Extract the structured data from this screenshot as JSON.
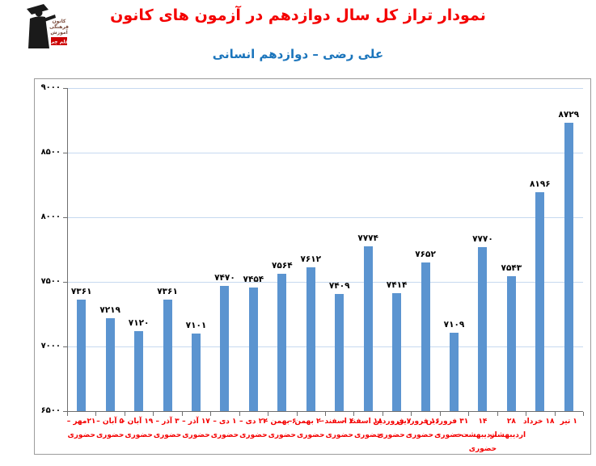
{
  "header": {
    "title": "نمودار تراز کل سال دوازدهم در آزمون های کانون",
    "subtitle": "علی رضی – دوازدهم انسانی",
    "logo": {
      "line1": "کانون",
      "line2": "فرهنگی",
      "line3": "آموزش",
      "badge": "قلم چی"
    }
  },
  "colors": {
    "title": "#f40000",
    "subtitle": "#1b75bc",
    "bar": "#5b94d0",
    "gridline": "#c6d9f0",
    "axis": "#6e6e6e",
    "value_label": "#000000",
    "x_label": "#f40000",
    "box_border": "#9c9c9c",
    "logo_badge": "#cc0000"
  },
  "chart_data": {
    "type": "bar",
    "title": "نمودار تراز کل سال دوازدهم در آزمون های کانون",
    "subtitle": "علی رضی – دوازدهم انسانی",
    "xlabel": "",
    "ylabel": "",
    "ylim": [
      6500,
      9000
    ],
    "grid": true,
    "legend": false,
    "yticks": [
      {
        "value": 6500,
        "label": "۶۵۰۰"
      },
      {
        "value": 7000,
        "label": "۷۰۰۰"
      },
      {
        "value": 7500,
        "label": "۷۵۰۰"
      },
      {
        "value": 8000,
        "label": "۸۰۰۰"
      },
      {
        "value": 8500,
        "label": "۸۵۰۰"
      },
      {
        "value": 9000,
        "label": "۹۰۰۰"
      }
    ],
    "points": [
      {
        "value": 7361,
        "label": "۷۳۶۱",
        "category": "۲۱مهر – حضوری",
        "category_lines": [
          "۲۱مهر –",
          "حضوری"
        ]
      },
      {
        "value": 7219,
        "label": "۷۲۱۹",
        "category": "۵ آبان – حضوری",
        "category_lines": [
          "۵ آبان –",
          "حضوری"
        ]
      },
      {
        "value": 7120,
        "label": "۷۱۲۰",
        "category": "۱۹ آبان – حضوری",
        "category_lines": [
          "۱۹ آبان –",
          "حضوری"
        ]
      },
      {
        "value": 7361,
        "label": "۷۳۶۱",
        "category": "۳ آذر – حضوری",
        "category_lines": [
          "۳ آذر –",
          "حضوری"
        ]
      },
      {
        "value": 7101,
        "label": "۷۱۰۱",
        "category": "۱۷ آذر – حضوری",
        "category_lines": [
          "۱۷ آذر –",
          "حضوری"
        ]
      },
      {
        "value": 7470,
        "label": "۷۴۷۰",
        "category": "۱ دی – حضوری",
        "category_lines": [
          "۱ دی –",
          "حضوری"
        ]
      },
      {
        "value": 7454,
        "label": "۷۴۵۴",
        "category": "۲۲ دی – حضوری",
        "category_lines": [
          "۲۲ دی –",
          "حضوری"
        ]
      },
      {
        "value": 7564,
        "label": "۷۵۶۴",
        "category": "۶ بهمن – حضوری",
        "category_lines": [
          "۶ بهمن –",
          "حضوری"
        ]
      },
      {
        "value": 7612,
        "label": "۷۶۱۲",
        "category": "۲۰ بهمن – حضوری",
        "category_lines": [
          "۲۰ بهمن –",
          "حضوری"
        ]
      },
      {
        "value": 7409,
        "label": "۷۴۰۹",
        "category": "۴ اسفند – حضوری",
        "category_lines": [
          "۴ اسفند –",
          "حضوری"
        ]
      },
      {
        "value": 7774,
        "label": "۷۷۷۴",
        "category": "۱۸ اسفند – حضوری",
        "category_lines": [
          "۱۸ اسفند –",
          "حضوری"
        ]
      },
      {
        "value": 7414,
        "label": "۷۴۱۴",
        "category": "۷ فروردین – حضوری",
        "category_lines": [
          "۷ فروردین",
          "– حضوری"
        ]
      },
      {
        "value": 7652,
        "label": "۷۶۵۲",
        "category": "۱۶ فروردین – حضوری",
        "category_lines": [
          "۱۶ فروردین",
          "– حضوری"
        ]
      },
      {
        "value": 7109,
        "label": "۷۱۰۹",
        "category": "۳۱ فروردین – حضوری",
        "category_lines": [
          "۳۱ فروردین",
          "– حضوری"
        ]
      },
      {
        "value": 7770,
        "label": "۷۷۷۰",
        "category": "۱۴ اردیبهشت – حضوری",
        "category_lines": [
          "۱۴",
          "اردیبهشت –",
          "حضوری"
        ]
      },
      {
        "value": 7543,
        "label": "۷۵۴۳",
        "category": "۲۸ اردیبهشت",
        "category_lines": [
          "۲۸",
          "اردیبهشت"
        ]
      },
      {
        "value": 8196,
        "label": "۸۱۹۶",
        "category": "۱۸ خرداد",
        "category_lines": [
          "۱۸ خرداد"
        ]
      },
      {
        "value": 8729,
        "label": "۸۷۲۹",
        "category": "۱ تیر",
        "category_lines": [
          "۱ تیر"
        ]
      }
    ]
  }
}
